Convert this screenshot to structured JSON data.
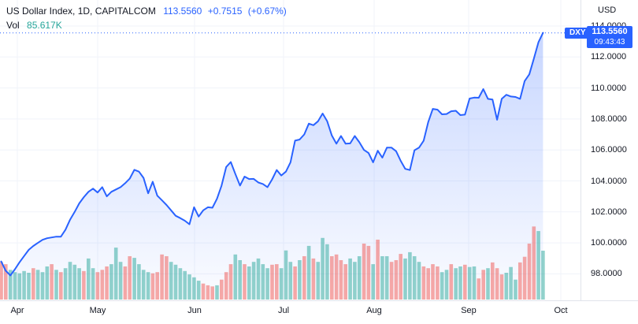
{
  "legend": {
    "title": "US Dollar Index, 1D, CAPITALCOM",
    "price": "113.5560",
    "change": "+0.7515",
    "change_pct": "(+0.67%)",
    "vol_label": "Vol",
    "vol_value": "85.617K"
  },
  "price_axis": {
    "currency_label": "USD",
    "tick_values": [
      114,
      112,
      110,
      108,
      106,
      104,
      102,
      100,
      98
    ],
    "badge": {
      "symbol": "DXY",
      "price": "113.5560",
      "time": "09:43:43"
    }
  },
  "time_axis": {
    "months": [
      "Apr",
      "May",
      "Jun",
      "Jul",
      "Aug",
      "Sep",
      "Oct"
    ]
  },
  "colors": {
    "accent_blue": "#2962ff",
    "text": "#131722",
    "vol_up": "#26a69a",
    "vol_down": "#ef5350",
    "grid": "#f0f3fa",
    "axis_border": "#e0e3eb",
    "area_top": "rgba(41,98,255,0.26)",
    "area_bottom": "rgba(41,98,255,0.02)"
  },
  "chart_data": [
    {
      "type": "area",
      "title": "US Dollar Index (DXY), 1D line",
      "ylabel": "USD",
      "ylim": [
        97.2,
        115
      ],
      "y_ticks": [
        98,
        100,
        102,
        104,
        106,
        108,
        110,
        112,
        114
      ],
      "x_months": [
        "Apr",
        "May",
        "Jun",
        "Jul",
        "Aug",
        "Sep",
        "Oct"
      ],
      "last_price": 113.556,
      "change": 0.7515,
      "change_pct": 0.67,
      "current_price_line": 113.556,
      "values": [
        98.8,
        98.2,
        97.9,
        98.3,
        98.75,
        99.15,
        99.55,
        99.8,
        100.0,
        100.2,
        100.3,
        100.35,
        100.4,
        100.4,
        100.85,
        101.5,
        102.0,
        102.55,
        102.95,
        103.3,
        103.5,
        103.25,
        103.6,
        103.0,
        103.3,
        103.45,
        103.6,
        103.85,
        104.15,
        104.72,
        104.6,
        104.2,
        103.2,
        103.95,
        103.05,
        102.75,
        102.45,
        102.1,
        101.75,
        101.6,
        101.43,
        101.2,
        102.3,
        101.7,
        102.1,
        102.3,
        102.27,
        102.85,
        103.7,
        104.9,
        105.22,
        104.45,
        103.7,
        104.28,
        104.12,
        104.13,
        103.9,
        103.8,
        103.6,
        104.1,
        104.7,
        104.35,
        104.6,
        105.2,
        106.6,
        106.67,
        107.0,
        107.7,
        107.6,
        107.85,
        108.35,
        107.85,
        106.93,
        106.4,
        106.9,
        106.4,
        106.42,
        106.9,
        106.5,
        106.0,
        105.8,
        105.2,
        105.95,
        105.5,
        106.15,
        106.15,
        105.92,
        105.3,
        104.78,
        104.7,
        105.98,
        106.15,
        106.6,
        107.8,
        108.65,
        108.6,
        108.3,
        108.32,
        108.5,
        108.53,
        108.25,
        108.28,
        109.32,
        109.38,
        109.37,
        109.93,
        109.3,
        109.25,
        107.95,
        109.3,
        109.56,
        109.45,
        109.42,
        109.3,
        110.45,
        110.88,
        111.9,
        112.95,
        113.556
      ]
    },
    {
      "type": "bar",
      "title": "Volume",
      "unit": "K",
      "last_value": 85.617,
      "values": [
        66,
        62,
        52,
        48,
        46,
        50,
        47,
        55,
        52,
        48,
        58,
        62,
        52,
        48,
        55,
        66,
        61,
        55,
        50,
        72,
        55,
        48,
        52,
        58,
        62,
        91,
        66,
        58,
        76,
        73,
        62,
        52,
        48,
        46,
        48,
        79,
        76,
        66,
        61,
        55,
        50,
        44,
        39,
        33,
        28,
        25,
        23,
        25,
        35,
        48,
        62,
        79,
        69,
        62,
        58,
        66,
        72,
        62,
        55,
        61,
        62,
        55,
        86,
        66,
        58,
        69,
        76,
        94,
        72,
        66,
        108,
        97,
        76,
        79,
        69,
        62,
        72,
        66,
        76,
        98,
        94,
        62,
        105,
        76,
        76,
        66,
        69,
        80,
        72,
        83,
        76,
        66,
        58,
        55,
        62,
        58,
        48,
        52,
        62,
        55,
        58,
        61,
        57,
        58,
        37,
        52,
        55,
        65,
        55,
        44,
        47,
        57,
        35,
        65,
        75,
        98,
        128,
        120,
        85.617
      ],
      "directions": "dduuuuuduuududuuuudu uddduuudduuuudddduuuuuuudd duddduuduuuuudduuudud uduuudddduuudduduudd duuuuddddu uduudu uddu ddduuudddduududuudduu"
    }
  ]
}
